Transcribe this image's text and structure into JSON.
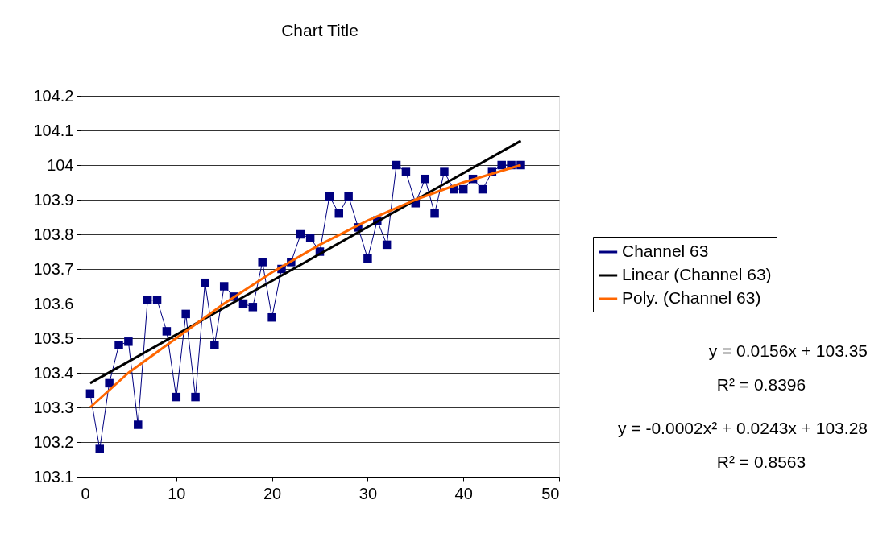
{
  "chart_data": {
    "type": "line",
    "title": "Chart Title",
    "xlim": [
      0,
      50
    ],
    "xticks": [
      0,
      10,
      20,
      30,
      40,
      50
    ],
    "ylim": [
      103.1,
      104.2
    ],
    "yticks": [
      103.1,
      103.2,
      103.3,
      103.4,
      103.5,
      103.6,
      103.7,
      103.8,
      103.9,
      104,
      104.1,
      104.2
    ],
    "grid": "y",
    "legend": "right",
    "marker": "square",
    "series": [
      {
        "name": "Channel 63",
        "color": "#000080",
        "x": [
          1,
          2,
          3,
          4,
          5,
          6,
          7,
          8,
          9,
          10,
          11,
          12,
          13,
          14,
          15,
          16,
          17,
          18,
          19,
          20,
          21,
          22,
          23,
          24,
          25,
          26,
          27,
          28,
          29,
          30,
          31,
          32,
          33,
          34,
          35,
          36,
          37,
          38,
          39,
          40,
          41,
          42,
          43,
          44,
          45,
          46
        ],
        "values": [
          103.34,
          103.18,
          103.37,
          103.48,
          103.49,
          103.25,
          103.61,
          103.61,
          103.52,
          103.33,
          103.57,
          103.33,
          103.66,
          103.48,
          103.65,
          103.62,
          103.6,
          103.59,
          103.72,
          103.56,
          103.7,
          103.72,
          103.8,
          103.79,
          103.75,
          103.91,
          103.86,
          103.91,
          103.82,
          103.73,
          103.84,
          103.77,
          104,
          103.98,
          103.89,
          103.96,
          103.86,
          103.98,
          103.93,
          103.93,
          103.96,
          103.93,
          103.98,
          104,
          104,
          104
        ]
      },
      {
        "name": "Linear (Channel 63)",
        "color": "#000000",
        "marker": "none",
        "x": [
          1,
          46
        ],
        "values": [
          103.37,
          104.07
        ]
      },
      {
        "name": "Poly. (Channel 63)",
        "color": "#ff6600",
        "marker": "none",
        "x": [
          1,
          5,
          10,
          15,
          20,
          25,
          30,
          35,
          40,
          46
        ],
        "values": [
          103.3,
          103.4,
          103.5,
          103.6,
          103.69,
          103.77,
          103.84,
          103.9,
          103.95,
          104
        ]
      }
    ],
    "annotations": [
      "y = 0.0156x + 103.35",
      "R² = 0.8396",
      "y = -0.0002x² + 0.0243x + 103.28",
      "R² = 0.8563"
    ]
  }
}
